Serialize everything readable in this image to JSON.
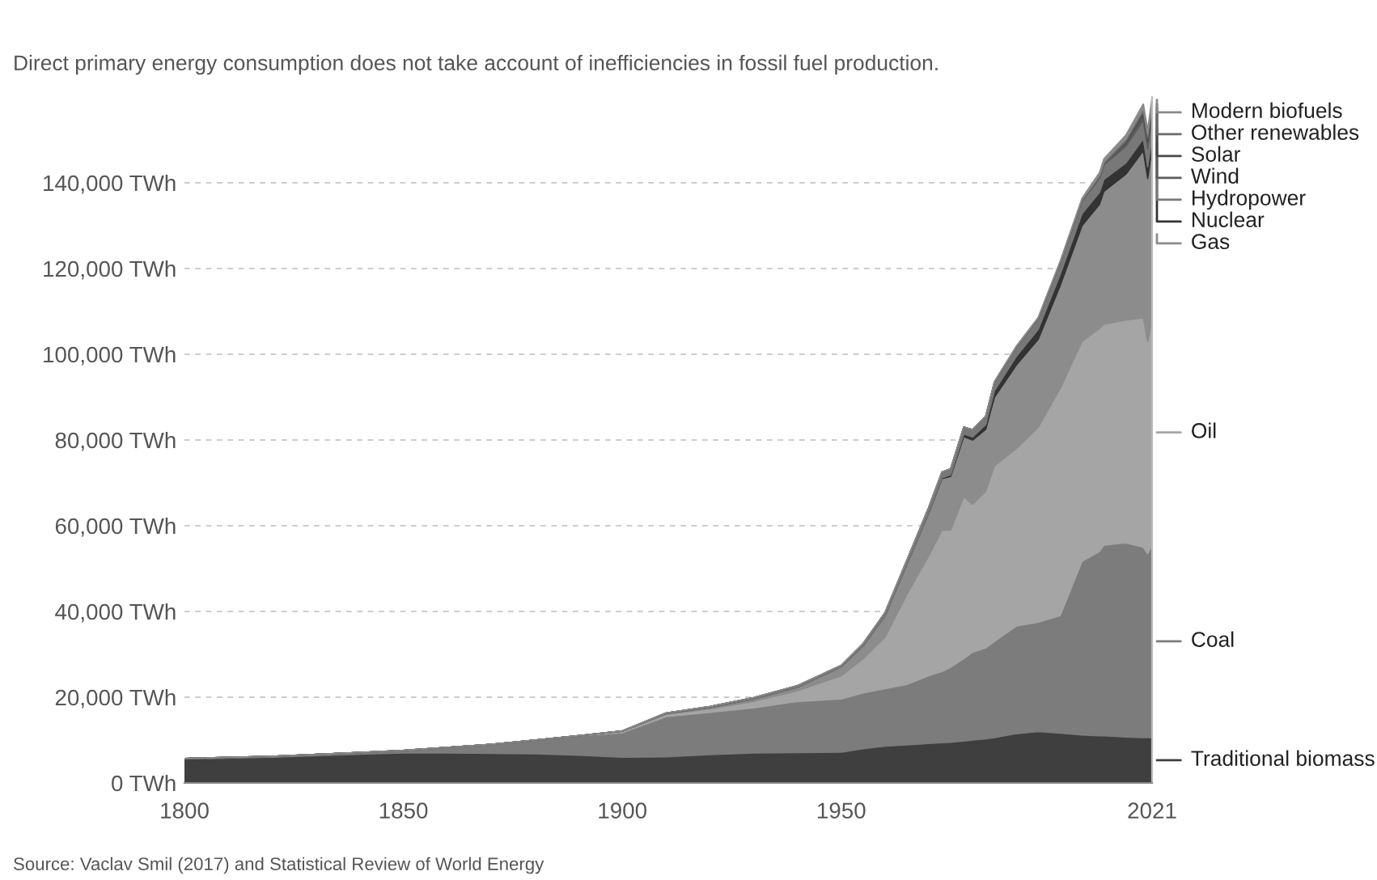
{
  "chart_data": {
    "type": "area",
    "stacked": true,
    "subtitle": "Direct primary energy consumption does not take account of inefficiencies in fossil fuel production.",
    "annotations": [
      "Source: Vaclav Smil (2017) and Statistical Review of World Energy"
    ],
    "x": [
      1800,
      1820,
      1840,
      1850,
      1860,
      1870,
      1880,
      1890,
      1900,
      1910,
      1920,
      1930,
      1940,
      1950,
      1955,
      1960,
      1965,
      1970,
      1973,
      1975,
      1978,
      1980,
      1983,
      1985,
      1990,
      1995,
      2000,
      2005,
      2009,
      2010,
      2015,
      2019,
      2020,
      2021
    ],
    "xlim": [
      1800,
      2021
    ],
    "xticks": [
      1800,
      1850,
      1900,
      1950,
      2021
    ],
    "ylim": [
      0,
      160000
    ],
    "yticks": [
      {
        "value": 0,
        "label": "0 TWh"
      },
      {
        "value": 20000,
        "label": "20,000 TWh"
      },
      {
        "value": 40000,
        "label": "40,000 TWh"
      },
      {
        "value": 60000,
        "label": "60,000 TWh"
      },
      {
        "value": 80000,
        "label": "80,000 TWh"
      },
      {
        "value": 100000,
        "label": "100,000 TWh"
      },
      {
        "value": 120000,
        "label": "120,000 TWh"
      },
      {
        "value": 140000,
        "label": "140,000 TWh"
      }
    ],
    "grid": "y",
    "legend": "right",
    "series": [
      {
        "name": "Traditional biomass",
        "color": "#3f3f3f",
        "values": [
          5600,
          6000,
          6700,
          7000,
          7000,
          6900,
          6800,
          6500,
          6000,
          6100,
          6600,
          7000,
          7100,
          7200,
          8000,
          8600,
          8900,
          9200,
          9400,
          9500,
          9800,
          10000,
          10300,
          10600,
          11500,
          12000,
          11600,
          11200,
          11000,
          11000,
          10700,
          10600,
          10600,
          10600
        ]
      },
      {
        "name": "Coal",
        "color": "#7c7c7c",
        "values": [
          100,
          200,
          400,
          600,
          1300,
          2100,
          3200,
          4500,
          5700,
          9400,
          9900,
          10500,
          11900,
          12400,
          13000,
          13400,
          14100,
          15800,
          16600,
          17500,
          19200,
          20500,
          21200,
          22400,
          25100,
          25500,
          27400,
          40500,
          43000,
          44500,
          45300,
          44400,
          42900,
          44900
        ]
      },
      {
        "name": "Oil",
        "color": "#a5a5a5",
        "values": [
          0,
          0,
          0,
          0,
          0,
          0,
          0,
          0,
          300,
          500,
          800,
          1500,
          2500,
          5400,
          8000,
          12000,
          21000,
          28000,
          33000,
          32000,
          37800,
          34500,
          36500,
          41000,
          41400,
          45500,
          53000,
          51300,
          52000,
          51500,
          52000,
          53500,
          49500,
          52500
        ]
      },
      {
        "name": "Gas",
        "color": "#8c8c8c",
        "values": [
          0,
          0,
          0,
          0,
          0,
          0,
          0,
          0,
          100,
          200,
          300,
          600,
          800,
          2100,
          3000,
          5000,
          7000,
          10000,
          12000,
          12500,
          14000,
          15000,
          14500,
          16000,
          19500,
          20500,
          24000,
          27000,
          29000,
          31000,
          34000,
          39000,
          38000,
          40000
        ]
      },
      {
        "name": "Nuclear",
        "color": "#333333",
        "values": [
          0,
          0,
          0,
          0,
          0,
          0,
          0,
          0,
          0,
          0,
          0,
          0,
          0,
          0,
          0,
          0,
          0,
          100,
          200,
          400,
          600,
          700,
          1100,
          1500,
          2000,
          2300,
          2600,
          2800,
          2800,
          2800,
          2600,
          2800,
          2700,
          2800
        ]
      },
      {
        "name": "Hydropower",
        "color": "#787878",
        "values": [
          0,
          0,
          0,
          0,
          0,
          0,
          0,
          0,
          0,
          100,
          200,
          300,
          400,
          300,
          500,
          700,
          900,
          1200,
          1300,
          1400,
          1600,
          1700,
          1900,
          2000,
          2200,
          2500,
          2700,
          2900,
          3300,
          3400,
          3900,
          4200,
          4300,
          4300
        ]
      },
      {
        "name": "Wind",
        "color": "#5c5c5c",
        "values": [
          0,
          0,
          0,
          0,
          0,
          0,
          0,
          0,
          0,
          0,
          0,
          0,
          0,
          0,
          0,
          0,
          0,
          0,
          0,
          0,
          0,
          0,
          0,
          0,
          0,
          0,
          0,
          100,
          300,
          300,
          800,
          1400,
          1600,
          1900
        ]
      },
      {
        "name": "Solar",
        "color": "#4a4a4a",
        "values": [
          0,
          0,
          0,
          0,
          0,
          0,
          0,
          0,
          0,
          0,
          0,
          0,
          0,
          0,
          0,
          0,
          0,
          0,
          0,
          0,
          0,
          0,
          0,
          0,
          0,
          0,
          0,
          0,
          0,
          0,
          300,
          700,
          900,
          1000
        ]
      },
      {
        "name": "Other renewables",
        "color": "#6a6a6a",
        "values": [
          0,
          0,
          0,
          0,
          0,
          0,
          0,
          0,
          0,
          0,
          0,
          0,
          0,
          0,
          0,
          0,
          0,
          0,
          0,
          0,
          0,
          0,
          0,
          100,
          100,
          200,
          200,
          300,
          400,
          400,
          600,
          700,
          800,
          800
        ]
      },
      {
        "name": "Modern biofuels",
        "color": "#8a8a8a",
        "values": [
          0,
          0,
          0,
          0,
          0,
          0,
          0,
          0,
          0,
          0,
          0,
          0,
          0,
          0,
          0,
          0,
          0,
          0,
          0,
          0,
          0,
          0,
          0,
          0,
          100,
          100,
          200,
          300,
          600,
          700,
          900,
          1100,
          1100,
          1100
        ]
      }
    ]
  }
}
